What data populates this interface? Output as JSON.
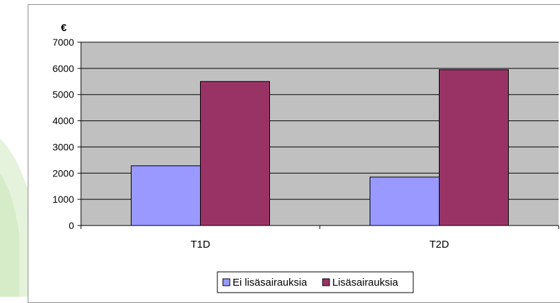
{
  "chart_data": {
    "type": "bar",
    "y_unit": "€",
    "categories": [
      "T1D",
      "T2D"
    ],
    "series": [
      {
        "name": "Ei lisäsairauksia",
        "values": [
          2280,
          1850
        ],
        "color": "#9999ff"
      },
      {
        "name": "Lisäsairauksia",
        "values": [
          5500,
          5950
        ],
        "color": "#993366"
      }
    ],
    "ylim": [
      0,
      7000
    ],
    "yticks": [
      0,
      1000,
      2000,
      3000,
      4000,
      5000,
      6000,
      7000
    ],
    "grid": true,
    "plot_background": "#c0c0c0",
    "legend_position": "bottom"
  }
}
